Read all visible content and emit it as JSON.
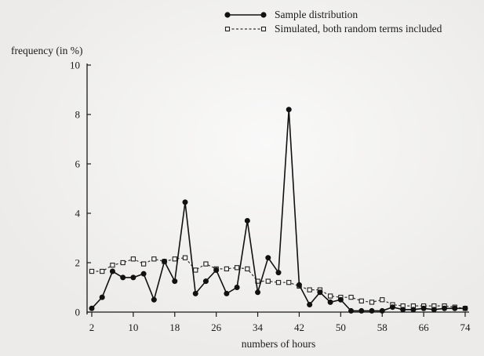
{
  "chart_data": {
    "type": "line",
    "xlabel": "numbers of hours",
    "ylabel": "frequency (in %)",
    "xlim": [
      2,
      74
    ],
    "ylim": [
      0,
      10
    ],
    "x_ticks": [
      2,
      10,
      18,
      26,
      34,
      42,
      50,
      58,
      66,
      74
    ],
    "y_ticks": [
      0,
      2,
      4,
      6,
      8,
      10
    ],
    "legend_position": "top-right",
    "series": [
      {
        "name": "Sample distribution",
        "style": "solid line, filled circle markers",
        "color": "#111111",
        "x": [
          2,
          4,
          6,
          8,
          10,
          12,
          14,
          16,
          18,
          20,
          22,
          24,
          26,
          28,
          30,
          32,
          34,
          36,
          38,
          40,
          42,
          44,
          46,
          48,
          50,
          52,
          54,
          56,
          58,
          60,
          62,
          64,
          66,
          68,
          70,
          72,
          74
        ],
        "values": [
          0.15,
          0.6,
          1.65,
          1.4,
          1.4,
          1.55,
          0.5,
          2.05,
          1.25,
          4.45,
          0.75,
          1.25,
          1.7,
          0.75,
          1.0,
          3.7,
          0.8,
          2.2,
          1.6,
          8.2,
          1.1,
          0.3,
          0.8,
          0.4,
          0.5,
          0.05,
          0.05,
          0.05,
          0.05,
          0.2,
          0.1,
          0.1,
          0.15,
          0.1,
          0.15,
          0.15,
          0.15
        ]
      },
      {
        "name": "Simulated, both random terms included",
        "style": "dashed line, open square markers",
        "color": "#222222",
        "x": [
          2,
          4,
          6,
          8,
          10,
          12,
          14,
          16,
          18,
          20,
          22,
          24,
          26,
          28,
          30,
          32,
          34,
          36,
          38,
          40,
          42,
          44,
          46,
          48,
          50,
          52,
          54,
          56,
          58,
          60,
          62,
          64,
          66,
          68,
          70,
          72,
          74
        ],
        "values": [
          1.65,
          1.65,
          1.9,
          2.0,
          2.15,
          1.95,
          2.15,
          2.05,
          2.15,
          2.2,
          1.7,
          1.95,
          1.75,
          1.75,
          1.8,
          1.75,
          1.25,
          1.25,
          1.2,
          1.2,
          1.05,
          0.9,
          0.9,
          0.65,
          0.6,
          0.6,
          0.45,
          0.4,
          0.5,
          0.3,
          0.25,
          0.25,
          0.25,
          0.25,
          0.25,
          0.2,
          0.15
        ]
      }
    ]
  }
}
